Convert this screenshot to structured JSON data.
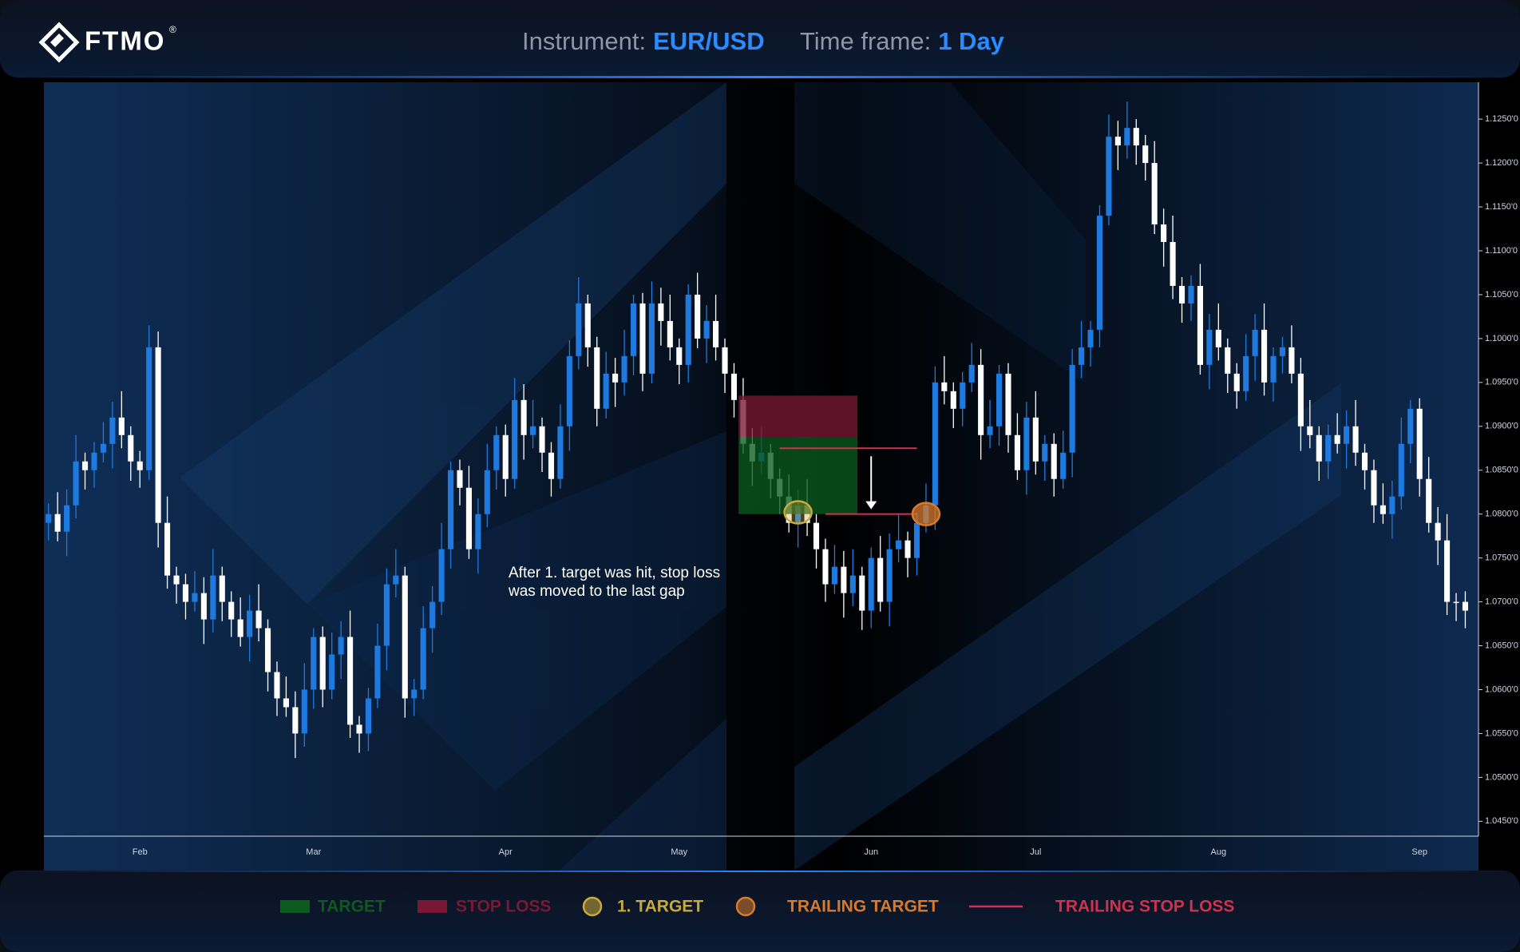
{
  "chart_data": {
    "type": "candlestick",
    "logo": "FTMO",
    "logo_mark": "®",
    "instrument_label": "Instrument:",
    "instrument": "EUR/USD",
    "timeframe_label": "Time frame:",
    "timeframe": "1 Day",
    "annotation": [
      "After 1. target was hit, stop loss",
      "was moved to the last gap"
    ],
    "up_color": "#1f7ae0",
    "down_color": "#ffffff",
    "categories": [
      null,
      null,
      null,
      null,
      null,
      null,
      null,
      null,
      null,
      null,
      "Feb",
      null,
      null,
      null,
      null,
      null,
      null,
      null,
      null,
      null,
      null,
      null,
      null,
      null,
      null,
      null,
      null,
      null,
      null,
      "Mar",
      null,
      null,
      null,
      null,
      null,
      null,
      null,
      null,
      null,
      null,
      null,
      null,
      null,
      null,
      null,
      null,
      null,
      null,
      null,
      null,
      "Apr",
      null,
      null,
      null,
      null,
      null,
      null,
      null,
      null,
      null,
      null,
      null,
      null,
      null,
      null,
      null,
      null,
      null,
      null,
      "May",
      null,
      null,
      null,
      null,
      null,
      null,
      null,
      null,
      null,
      null,
      null,
      null,
      null,
      null,
      null,
      null,
      null,
      null,
      null,
      null,
      "Jun",
      null,
      null,
      null,
      null,
      null,
      null,
      null,
      null,
      null,
      null,
      null,
      null,
      null,
      null,
      null,
      null,
      null,
      "Jul",
      null,
      null,
      null,
      null,
      null,
      null,
      null,
      null,
      null,
      null,
      null,
      null,
      null,
      null,
      null,
      null,
      null,
      null,
      null,
      "Aug",
      null,
      null,
      null,
      null,
      null,
      null,
      null,
      null,
      null,
      null,
      null,
      null,
      null,
      null,
      null,
      null,
      null,
      null,
      null,
      null,
      null,
      "Sep",
      null,
      null,
      null,
      null,
      null
    ],
    "open": [
      1.079,
      1.08,
      1.078,
      1.081,
      1.086,
      1.085,
      1.087,
      1.088,
      1.091,
      1.089,
      1.086,
      1.085,
      1.099,
      1.079,
      1.073,
      1.072,
      1.07,
      1.071,
      1.068,
      1.073,
      1.07,
      1.068,
      1.066,
      1.069,
      1.067,
      1.062,
      1.059,
      1.058,
      1.055,
      1.06,
      1.066,
      1.06,
      1.064,
      1.066,
      1.056,
      1.055,
      1.059,
      1.065,
      1.072,
      1.073,
      1.059,
      1.06,
      1.067,
      1.07,
      1.076,
      1.085,
      1.083,
      1.076,
      1.08,
      1.085,
      1.089,
      1.084,
      1.093,
      1.089,
      1.09,
      1.087,
      1.084,
      1.09,
      1.098,
      1.104,
      1.099,
      1.092,
      1.096,
      1.095,
      1.098,
      1.104,
      1.096,
      1.104,
      1.102,
      1.099,
      1.097,
      1.105,
      1.1,
      1.102,
      1.099,
      1.096,
      1.093,
      1.088,
      1.086,
      1.087,
      1.084,
      1.082,
      1.079,
      1.081,
      1.079,
      1.076,
      1.072,
      1.074,
      1.071,
      1.073,
      1.069,
      1.075,
      1.07,
      1.076,
      1.077,
      1.075,
      1.079,
      1.081,
      1.095,
      1.094,
      1.092,
      1.095,
      1.097,
      1.089,
      1.09,
      1.096,
      1.089,
      1.085,
      1.091,
      1.086,
      1.088,
      1.084,
      1.087,
      1.097,
      1.099,
      1.101,
      1.114,
      1.123,
      1.122,
      1.124,
      1.122,
      1.12,
      1.113,
      1.111,
      1.106,
      1.104,
      1.106,
      1.097,
      1.101,
      1.099,
      1.096,
      1.094,
      1.098,
      1.101,
      1.095,
      1.098,
      1.099,
      1.096,
      1.09,
      1.089,
      1.086,
      1.089,
      1.088,
      1.09,
      1.087,
      1.085,
      1.081,
      1.08,
      1.082,
      1.088,
      1.092,
      1.084,
      1.079,
      1.077,
      1.07,
      1.07
    ],
    "high": [
      1.0812,
      1.0825,
      1.0828,
      1.089,
      1.087,
      1.0882,
      1.0905,
      1.0928,
      1.094,
      1.09,
      1.0872,
      1.1015,
      1.1008,
      1.082,
      1.074,
      1.0732,
      1.0735,
      1.0728,
      1.076,
      1.074,
      1.0712,
      1.0705,
      1.0708,
      1.072,
      1.068,
      1.0632,
      1.0615,
      1.0598,
      1.063,
      1.067,
      1.0672,
      1.0665,
      1.0678,
      1.069,
      1.057,
      1.0602,
      1.0675,
      1.0738,
      1.076,
      1.074,
      1.0612,
      1.0695,
      1.0718,
      1.079,
      1.086,
      1.0862,
      1.0855,
      1.0818,
      1.088,
      1.09,
      1.0902,
      1.0955,
      1.0948,
      1.093,
      1.091,
      1.0882,
      1.0925,
      1.0998,
      1.107,
      1.105,
      1.1002,
      1.0985,
      1.0978,
      1.101,
      1.105,
      1.1052,
      1.1065,
      1.1058,
      1.105,
      1.1,
      1.1062,
      1.1075,
      1.1038,
      1.105,
      1.1,
      1.0972,
      1.0955,
      1.0898,
      1.09,
      1.088,
      1.0852,
      1.0845,
      1.0828,
      1.084,
      1.08,
      1.0772,
      1.0765,
      1.0758,
      1.076,
      1.074,
      1.0762,
      1.0775,
      1.0778,
      1.08,
      1.078,
      1.0802,
      1.0835,
      1.0968,
      1.098,
      1.095,
      1.0962,
      1.0995,
      1.0988,
      1.093,
      1.097,
      1.0972,
      1.0915,
      1.0928,
      1.094,
      1.089,
      1.0892,
      1.0895,
      1.0988,
      1.102,
      1.102,
      1.1152,
      1.1255,
      1.1248,
      1.127,
      1.125,
      1.1232,
      1.1225,
      1.1148,
      1.114,
      1.107,
      1.1072,
      1.1085,
      1.1028,
      1.104,
      1.1,
      1.0972,
      1.1005,
      1.1028,
      1.104,
      1.099,
      1.1002,
      1.1015,
      1.0978,
      1.093,
      1.09,
      1.0902,
      1.0915,
      1.0918,
      1.093,
      1.088,
      1.0862,
      1.0835,
      1.0838,
      1.091,
      1.093,
      1.0932,
      1.0865,
      1.0808,
      1.08,
      1.071,
      1.0712
    ],
    "low": [
      1.077,
      1.0769,
      1.0752,
      1.0795,
      1.0828,
      1.083,
      1.0859,
      1.0852,
      1.0875,
      1.0838,
      1.083,
      1.0839,
      1.0762,
      1.0715,
      1.0698,
      1.068,
      1.0689,
      1.0652,
      1.0665,
      1.0678,
      1.066,
      1.0649,
      1.0632,
      1.0655,
      1.0598,
      1.057,
      1.0569,
      1.0522,
      1.0535,
      1.0578,
      1.058,
      1.0589,
      1.0612,
      1.0545,
      1.0528,
      1.053,
      1.0579,
      1.0622,
      1.0705,
      1.0568,
      1.057,
      1.0589,
      1.0642,
      1.0685,
      1.0738,
      1.081,
      1.0749,
      1.0732,
      1.0785,
      1.0828,
      1.082,
      1.0829,
      1.0862,
      1.0875,
      1.0848,
      1.082,
      1.0829,
      1.0872,
      1.0965,
      1.0968,
      1.09,
      1.0909,
      1.0922,
      1.0935,
      1.0958,
      1.094,
      1.0949,
      1.0992,
      1.0975,
      1.0948,
      1.095,
      1.0989,
      1.0972,
      1.0975,
      1.0938,
      1.091,
      1.0869,
      1.0832,
      1.0845,
      1.0818,
      1.08,
      1.0779,
      1.0762,
      1.0775,
      1.0738,
      1.07,
      1.0709,
      1.0682,
      1.0695,
      1.0668,
      1.067,
      1.0689,
      1.0672,
      1.0745,
      1.0728,
      1.073,
      1.0779,
      1.0782,
      1.0925,
      1.0898,
      1.09,
      1.0939,
      1.0862,
      1.0875,
      1.0878,
      1.087,
      1.0839,
      1.0822,
      1.0845,
      1.0838,
      1.082,
      1.0829,
      1.0842,
      1.0955,
      1.0968,
      1.099,
      1.1129,
      1.1192,
      1.1205,
      1.1198,
      1.118,
      1.1119,
      1.1082,
      1.1045,
      1.1018,
      1.102,
      1.0959,
      1.0942,
      1.0975,
      1.0938,
      1.092,
      1.0929,
      1.0952,
      1.0935,
      1.0928,
      1.096,
      1.0949,
      1.0872,
      1.0875,
      1.0838,
      1.084,
      1.0869,
      1.0852,
      1.0855,
      1.0828,
      1.079,
      1.0789,
      1.0772,
      1.0805,
      1.0858,
      1.082,
      1.0779,
      1.0742,
      1.0685,
      1.0678,
      1.067
    ],
    "close": [
      1.08,
      1.078,
      1.081,
      1.086,
      1.085,
      1.087,
      1.088,
      1.091,
      1.089,
      1.086,
      1.085,
      1.099,
      1.079,
      1.073,
      1.072,
      1.07,
      1.071,
      1.068,
      1.073,
      1.07,
      1.068,
      1.066,
      1.069,
      1.067,
      1.062,
      1.059,
      1.058,
      1.055,
      1.06,
      1.066,
      1.06,
      1.064,
      1.066,
      1.056,
      1.055,
      1.059,
      1.065,
      1.072,
      1.073,
      1.059,
      1.06,
      1.067,
      1.07,
      1.076,
      1.085,
      1.083,
      1.076,
      1.08,
      1.085,
      1.089,
      1.084,
      1.093,
      1.089,
      1.09,
      1.087,
      1.084,
      1.09,
      1.098,
      1.104,
      1.099,
      1.092,
      1.096,
      1.095,
      1.098,
      1.104,
      1.096,
      1.104,
      1.102,
      1.099,
      1.097,
      1.105,
      1.1,
      1.102,
      1.099,
      1.096,
      1.093,
      1.088,
      1.086,
      1.087,
      1.084,
      1.082,
      1.079,
      1.081,
      1.079,
      1.076,
      1.072,
      1.074,
      1.071,
      1.073,
      1.069,
      1.075,
      1.07,
      1.076,
      1.077,
      1.075,
      1.079,
      1.081,
      1.095,
      1.094,
      1.092,
      1.095,
      1.097,
      1.089,
      1.09,
      1.096,
      1.089,
      1.085,
      1.091,
      1.086,
      1.088,
      1.084,
      1.087,
      1.097,
      1.099,
      1.101,
      1.114,
      1.123,
      1.122,
      1.124,
      1.122,
      1.12,
      1.113,
      1.111,
      1.106,
      1.104,
      1.106,
      1.097,
      1.101,
      1.099,
      1.096,
      1.094,
      1.098,
      1.101,
      1.095,
      1.098,
      1.099,
      1.096,
      1.09,
      1.089,
      1.086,
      1.089,
      1.088,
      1.09,
      1.087,
      1.085,
      1.081,
      1.08,
      1.082,
      1.088,
      1.092,
      1.084,
      1.079,
      1.077,
      1.07,
      1.07,
      1.069
    ],
    "ylim": [
      1.0433,
      1.1292
    ],
    "yticks": [
      {
        "value": 1.045,
        "label": "1.0450'0"
      },
      {
        "value": 1.05,
        "label": "1.0500'0"
      },
      {
        "value": 1.055,
        "label": "1.0550'0"
      },
      {
        "value": 1.06,
        "label": "1.0600'0"
      },
      {
        "value": 1.065,
        "label": "1.0650'0"
      },
      {
        "value": 1.07,
        "label": "1.0700'0"
      },
      {
        "value": 1.075,
        "label": "1.0750'0"
      },
      {
        "value": 1.08,
        "label": "1.0800'0"
      },
      {
        "value": 1.085,
        "label": "1.0850'0"
      },
      {
        "value": 1.09,
        "label": "1.0900'0"
      },
      {
        "value": 1.095,
        "label": "1.0950'0"
      },
      {
        "value": 1.1,
        "label": "1.1000'0"
      },
      {
        "value": 1.105,
        "label": "1.1050'0"
      },
      {
        "value": 1.11,
        "label": "1.1100'0"
      },
      {
        "value": 1.115,
        "label": "1.1150'0"
      },
      {
        "value": 1.12,
        "label": "1.1200'0"
      },
      {
        "value": 1.125,
        "label": "1.1250'0"
      }
    ],
    "zones": [
      {
        "name": "TARGET",
        "color": "#0c5a1e",
        "x": [
          76,
          88
        ],
        "y": [
          1.08,
          1.0888
        ]
      },
      {
        "name": "STOP LOSS",
        "color": "#7a1834",
        "x": [
          76,
          88
        ],
        "y": [
          1.0888,
          1.0935
        ]
      }
    ],
    "markers": [
      {
        "name": "1. TARGET",
        "color": "#c9a93a",
        "x": 82,
        "y": 1.0802
      },
      {
        "name": "TRAILING TARGET",
        "color": "#d97a2a",
        "x": 96,
        "y": 1.08
      }
    ],
    "trailing_stop": {
      "name": "TRAILING STOP LOSS",
      "color": "#d0314c",
      "segments": [
        {
          "x": [
            80,
            95
          ],
          "y": 1.0875
        },
        {
          "x": [
            85,
            95
          ],
          "y": 1.08
        }
      ]
    }
  }
}
